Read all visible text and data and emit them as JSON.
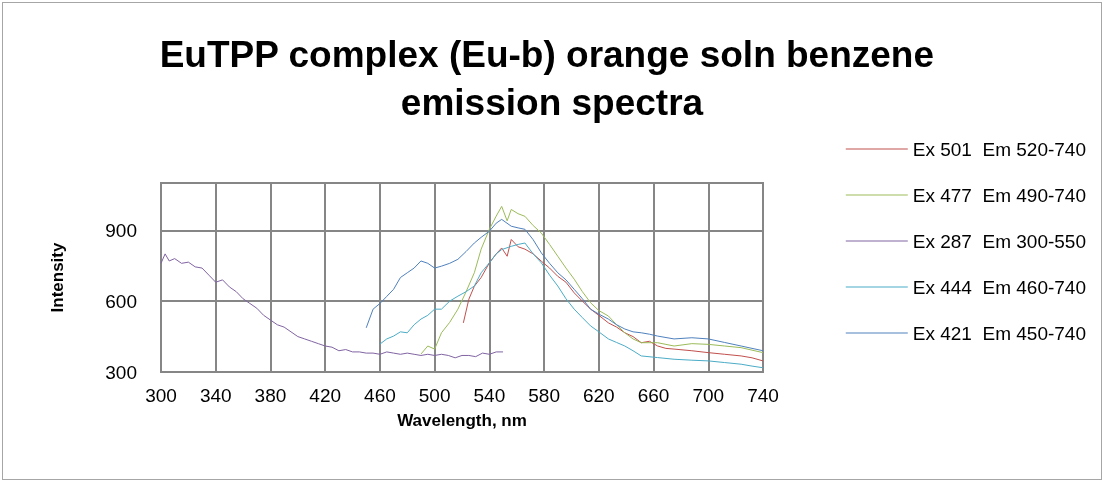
{
  "chart_data": {
    "type": "line",
    "title": "EuTPP complex (Eu-b) orange soln benzene emission spectra",
    "xlabel": "Wavelength, nm",
    "ylabel": "Intensity",
    "xlim": [
      300,
      740
    ],
    "xticks": [
      300,
      340,
      380,
      420,
      460,
      500,
      540,
      580,
      620,
      660,
      700,
      740
    ],
    "ylim": [
      300,
      1100
    ],
    "yticks": [
      300,
      600,
      900
    ],
    "grid": true,
    "legend": "right",
    "marker": "none",
    "line_style": "solid",
    "series": [
      {
        "name": "Ex 501  Em 520-740",
        "color": "#c0504d",
        "x": [
          521,
          525,
          529,
          534,
          540,
          545,
          549,
          553,
          556,
          561,
          566,
          572,
          578,
          584,
          590,
          596,
          602,
          608,
          614,
          620,
          627,
          633,
          639,
          645,
          651,
          657,
          663,
          669,
          675,
          688,
          700,
          712,
          724,
          732,
          740
        ],
        "values": [
          508,
          608,
          663,
          700,
          762,
          800,
          825,
          790,
          861,
          830,
          820,
          800,
          769,
          740,
          705,
          680,
          635,
          600,
          566,
          540,
          508,
          490,
          466,
          450,
          424,
          430,
          410,
          400,
          397,
          390,
          382,
          375,
          368,
          360,
          347
        ]
      },
      {
        "name": "Ex 477  Em 490-740",
        "color": "#9bbb59",
        "x": [
          490,
          495,
          500,
          505,
          511,
          517,
          523,
          529,
          534,
          540,
          545,
          549,
          553,
          556,
          561,
          566,
          572,
          578,
          584,
          590,
          596,
          602,
          608,
          614,
          620,
          627,
          633,
          639,
          645,
          651,
          663,
          675,
          688,
          700,
          712,
          724,
          740
        ],
        "values": [
          376,
          410,
          397,
          466,
          510,
          566,
          640,
          720,
          820,
          904,
          960,
          1001,
          940,
          988,
          970,
          959,
          920,
          888,
          840,
          790,
          740,
          693,
          640,
          593,
          560,
          537,
          500,
          466,
          440,
          424,
          424,
          410,
          420,
          417,
          410,
          403,
          382
        ]
      },
      {
        "name": "Ex 287  Em 300-550",
        "color": "#8064a2",
        "x": [
          300,
          303,
          306,
          310,
          315,
          320,
          325,
          330,
          335,
          340,
          345,
          350,
          355,
          360,
          365,
          370,
          375,
          380,
          385,
          390,
          395,
          400,
          405,
          410,
          415,
          420,
          425,
          430,
          435,
          440,
          445,
          450,
          455,
          460,
          465,
          470,
          475,
          480,
          485,
          490,
          495,
          500,
          505,
          510,
          515,
          520,
          525,
          530,
          535,
          540,
          545,
          550
        ],
        "values": [
          760,
          800,
          770,
          780,
          760,
          765,
          745,
          740,
          710,
          680,
          690,
          660,
          640,
          610,
          590,
          570,
          540,
          520,
          500,
          490,
          470,
          450,
          440,
          430,
          420,
          410,
          405,
          390,
          395,
          385,
          385,
          380,
          380,
          375,
          385,
          380,
          375,
          380,
          375,
          370,
          375,
          370,
          375,
          370,
          360,
          370,
          370,
          365,
          380,
          375,
          385,
          385
        ]
      },
      {
        "name": "Ex 444  Em 460-740",
        "color": "#4bacc6",
        "x": [
          460,
          465,
          470,
          475,
          480,
          485,
          490,
          495,
          500,
          505,
          511,
          517,
          523,
          529,
          534,
          540,
          545,
          549,
          556,
          561,
          566,
          572,
          578,
          584,
          590,
          596,
          602,
          608,
          614,
          620,
          627,
          633,
          639,
          645,
          651,
          663,
          675,
          688,
          700,
          712,
          724,
          732,
          740
        ],
        "values": [
          418,
          440,
          452,
          470,
          466,
          500,
          524,
          540,
          566,
          566,
          600,
          621,
          640,
          664,
          720,
          762,
          800,
          818,
          832,
          840,
          846,
          800,
          762,
          710,
          664,
          610,
          566,
          530,
          495,
          470,
          440,
          425,
          410,
          390,
          368,
          361,
          354,
          350,
          347,
          340,
          333,
          325,
          318
        ]
      },
      {
        "name": "Ex 421  Em 450-740",
        "color": "#4f81bd",
        "x": [
          450,
          455,
          460,
          465,
          470,
          475,
          480,
          485,
          490,
          495,
          500,
          505,
          511,
          517,
          523,
          529,
          534,
          540,
          545,
          549,
          556,
          561,
          566,
          572,
          578,
          584,
          590,
          596,
          602,
          608,
          614,
          620,
          627,
          633,
          639,
          645,
          651,
          657,
          663,
          675,
          688,
          700,
          712,
          724,
          740
        ],
        "values": [
          487,
          566,
          590,
          620,
          650,
          700,
          720,
          740,
          770,
          760,
          740,
          748,
          760,
          777,
          810,
          846,
          870,
          896,
          930,
          946,
          917,
          910,
          904,
          860,
          804,
          760,
          720,
          690,
          650,
          610,
          566,
          545,
          524,
          500,
          482,
          470,
          466,
          460,
          452,
          440,
          445,
          440,
          425,
          410,
          390
        ]
      }
    ]
  }
}
